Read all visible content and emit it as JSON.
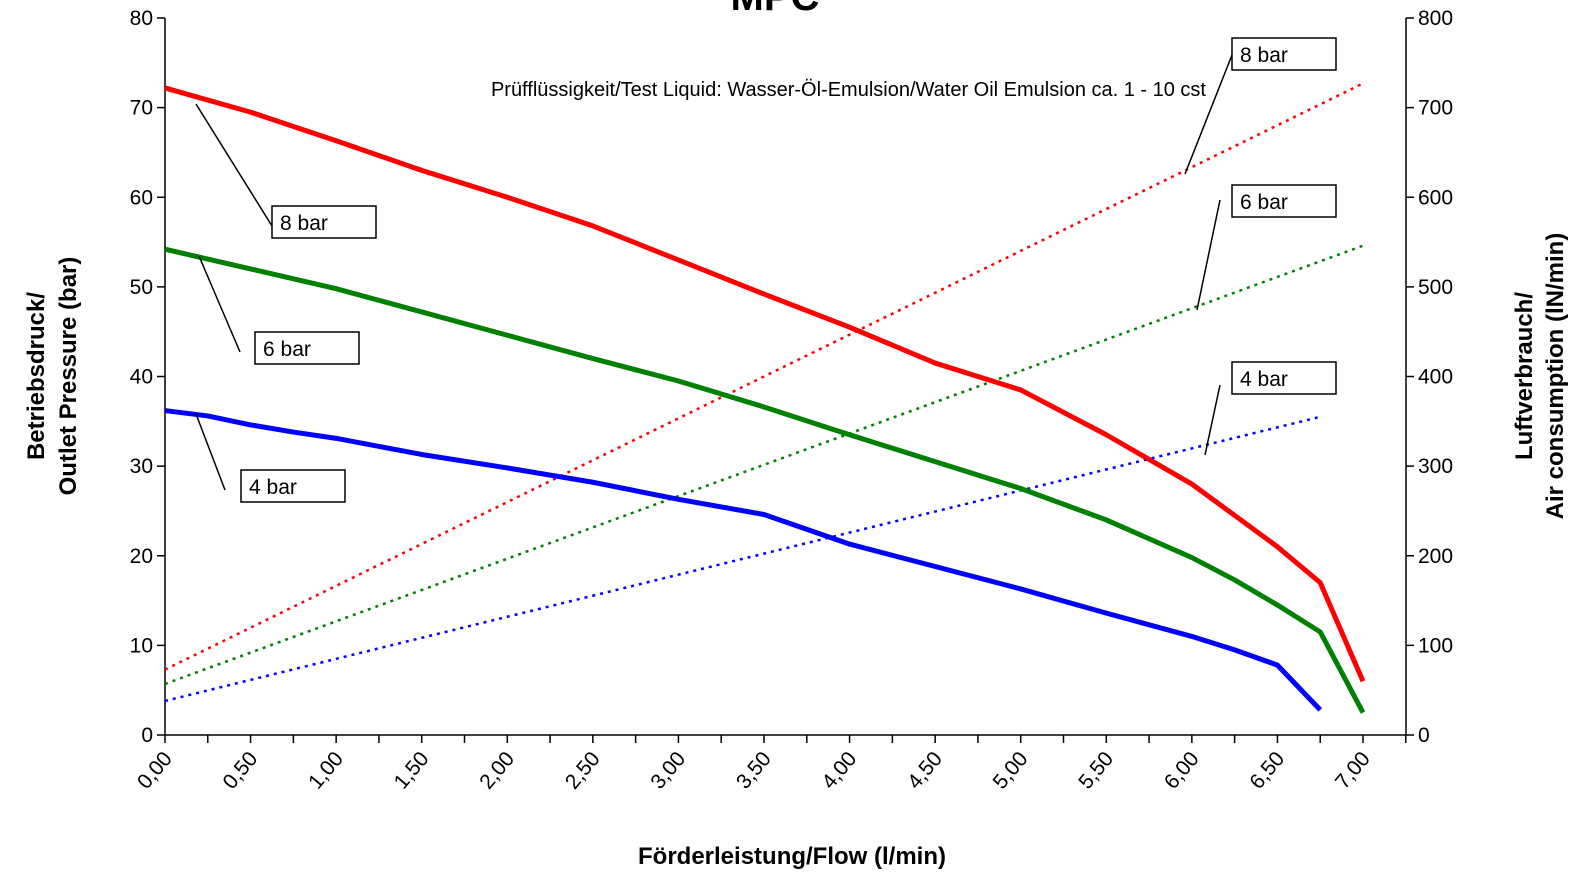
{
  "chart_data": {
    "type": "line",
    "title": "MPC",
    "note": "Prüfflüssigkeit/Test Liquid: Wasser-Öl-Emulsion/Water Oil Emulsion ca. 1 - 10 cst",
    "xlabel": "Förderleistung/Flow (l/min)",
    "ylabel_left_line1": "Betriebsdruck/",
    "ylabel_left_line2": "Outlet Pressure (bar)",
    "ylabel_right_line1": "Luftverbrauch/",
    "ylabel_right_line2": "Air consumption (lN/min)",
    "x_tick_labels": [
      "0,00",
      "0,50",
      "1,00",
      "1,50",
      "2,00",
      "2,50",
      "3,00",
      "3,50",
      "4,00",
      "4,50",
      "5,00",
      "5,50",
      "6,00",
      "6,50",
      "7,00"
    ],
    "xlim": [
      0,
      7.25
    ],
    "ylim_left": [
      0,
      80
    ],
    "ylim_right": [
      0,
      800
    ],
    "y_left_ticks": [
      "0",
      "10",
      "20",
      "30",
      "40",
      "50",
      "60",
      "70",
      "80"
    ],
    "y_right_ticks": [
      "0",
      "100",
      "200",
      "300",
      "400",
      "500",
      "600",
      "700",
      "800"
    ],
    "grid": false,
    "colors": {
      "red": "#ff0000",
      "green": "#008000",
      "blue": "#0000ff"
    },
    "pressure_series": [
      {
        "label": "8 bar",
        "color": "#ff0000",
        "x": [
          0,
          0.5,
          1,
          1.5,
          2,
          2.5,
          3,
          3.5,
          4,
          4.5,
          5,
          5.5,
          6,
          6.25,
          6.5,
          6.75,
          7.0
        ],
        "y": [
          72.2,
          69.5,
          66.3,
          63.0,
          60.0,
          56.8,
          53.0,
          49.2,
          45.5,
          41.5,
          38.5,
          33.5,
          28.0,
          24.5,
          21.0,
          17.0,
          6.0
        ]
      },
      {
        "label": "6 bar",
        "color": "#008000",
        "x": [
          0,
          0.5,
          1,
          1.5,
          2,
          2.5,
          3,
          3.5,
          4,
          4.5,
          5,
          5.5,
          6,
          6.25,
          6.5,
          6.75,
          7.0
        ],
        "y": [
          54.2,
          52.0,
          49.8,
          47.2,
          44.6,
          42.0,
          39.5,
          36.6,
          33.5,
          30.5,
          27.5,
          24.0,
          19.8,
          17.3,
          14.5,
          11.5,
          2.5
        ]
      },
      {
        "label": "4 bar",
        "color": "#0000ff",
        "x": [
          0,
          0.25,
          0.5,
          0.75,
          1,
          1.5,
          2,
          2.5,
          3,
          3.5,
          4,
          4.5,
          5,
          5.5,
          6,
          6.25,
          6.5,
          6.75
        ],
        "y": [
          36.2,
          35.6,
          34.6,
          33.8,
          33.1,
          31.3,
          29.8,
          28.2,
          26.3,
          24.6,
          21.3,
          18.8,
          16.3,
          13.6,
          11.0,
          9.5,
          7.8,
          2.8
        ]
      }
    ],
    "air_series": [
      {
        "label": "8 bar",
        "color": "#ff0000",
        "x": [
          0,
          7.0
        ],
        "y": [
          73,
          727
        ]
      },
      {
        "label": "6 bar",
        "color": "#008000",
        "x": [
          0,
          7.0
        ],
        "y": [
          57,
          546
        ]
      },
      {
        "label": "4 bar",
        "color": "#0000ff",
        "x": [
          0,
          6.75
        ],
        "y": [
          38,
          355
        ]
      }
    ],
    "annotations": [
      {
        "text": "8 bar",
        "target": "pressure-8"
      },
      {
        "text": "6 bar",
        "target": "pressure-6"
      },
      {
        "text": "4 bar",
        "target": "pressure-4"
      },
      {
        "text": "8 bar",
        "target": "air-8"
      },
      {
        "text": "6 bar",
        "target": "air-6"
      },
      {
        "text": "4 bar",
        "target": "air-4"
      }
    ]
  }
}
